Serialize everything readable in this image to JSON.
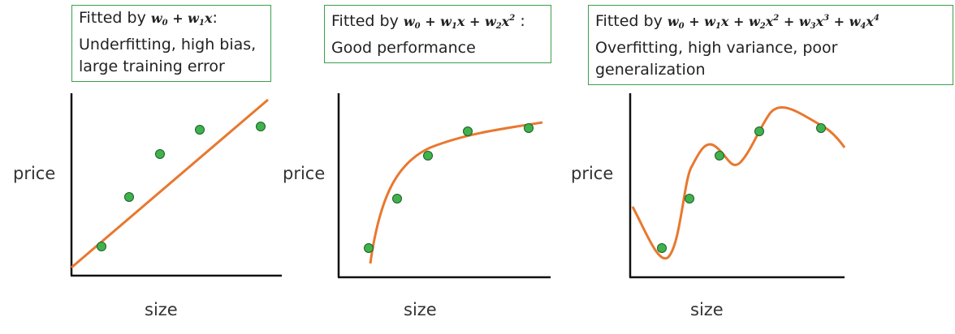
{
  "panels": [
    {
      "fit_label": "Fitted by",
      "formula_html": "w<sub>0</sub> + w<sub>1</sub>x",
      "formula_suffix": ":",
      "description_lines": [
        "Underfitting, high bias,",
        "large training error"
      ],
      "ylabel": "price",
      "xlabel": "size"
    },
    {
      "fit_label": "Fitted by",
      "formula_html": "w<sub>0</sub> + w<sub>1</sub>x + w<sub>2</sub>x<sup>2</sup>",
      "formula_suffix": ":",
      "description_lines": [
        "Good performance"
      ],
      "ylabel": "price",
      "xlabel": "size"
    },
    {
      "fit_label": "Fitted by",
      "formula_html": "w<sub>0</sub> + w<sub>1</sub>x + w<sub>2</sub>x<sup>2</sup> + w<sub>3</sub>x<sup>3</sup> + w<sub>4</sub>x<sup>4</sup>",
      "formula_suffix": "",
      "description_lines": [
        "Overfitting, high variance, poor",
        "generalization"
      ],
      "ylabel": "price",
      "xlabel": "size"
    }
  ],
  "colors": {
    "curve": "#e8782f",
    "point_fill": "#3fb24e",
    "point_stroke": "#1d5e24",
    "box_border": "#3aa14a",
    "axis": "#111111"
  }
}
